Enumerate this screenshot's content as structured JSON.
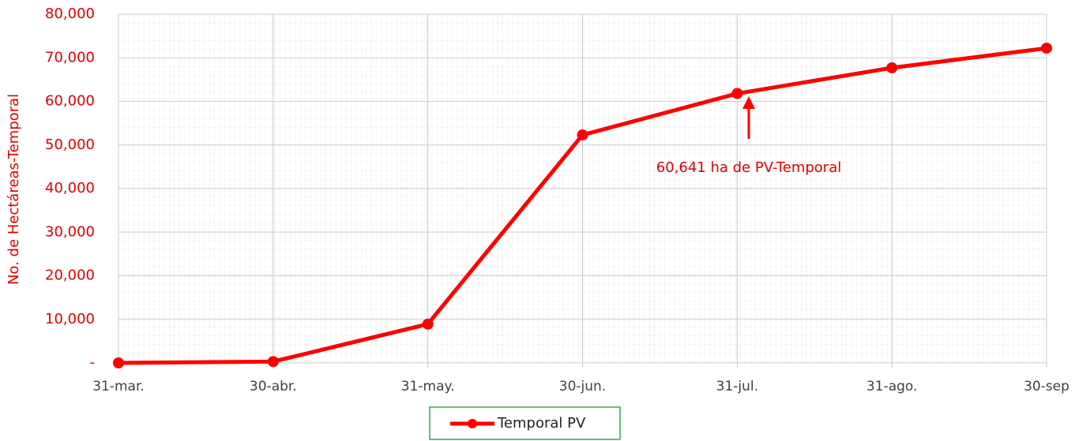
{
  "chart_data": {
    "type": "line",
    "y_label": "No. de Hectáreas-Temporal",
    "categories": [
      "31-mar.",
      "30-abr.",
      "31-may.",
      "30-jun.",
      "31-jul.",
      "31-ago.",
      "30-sep"
    ],
    "series": [
      {
        "name": "Temporal PV",
        "color": "#ff0000",
        "values": [
          0,
          300,
          8900,
          52300,
          61800,
          67700,
          72200
        ]
      }
    ],
    "ylim": [
      0,
      80000
    ],
    "yticks": [
      {
        "value": 0,
        "label": "-"
      },
      {
        "value": 10000,
        "label": "10,000"
      },
      {
        "value": 20000,
        "label": "20,000"
      },
      {
        "value": 30000,
        "label": "30,000"
      },
      {
        "value": 40000,
        "label": "40,000"
      },
      {
        "value": 50000,
        "label": "50,000"
      },
      {
        "value": 60000,
        "label": "60,000"
      },
      {
        "value": 70000,
        "label": "70,000"
      },
      {
        "value": 80000,
        "label": "80,000"
      }
    ],
    "annotation": "60,641 ha de PV-Temporal",
    "grid": true,
    "legend": "bottom"
  }
}
